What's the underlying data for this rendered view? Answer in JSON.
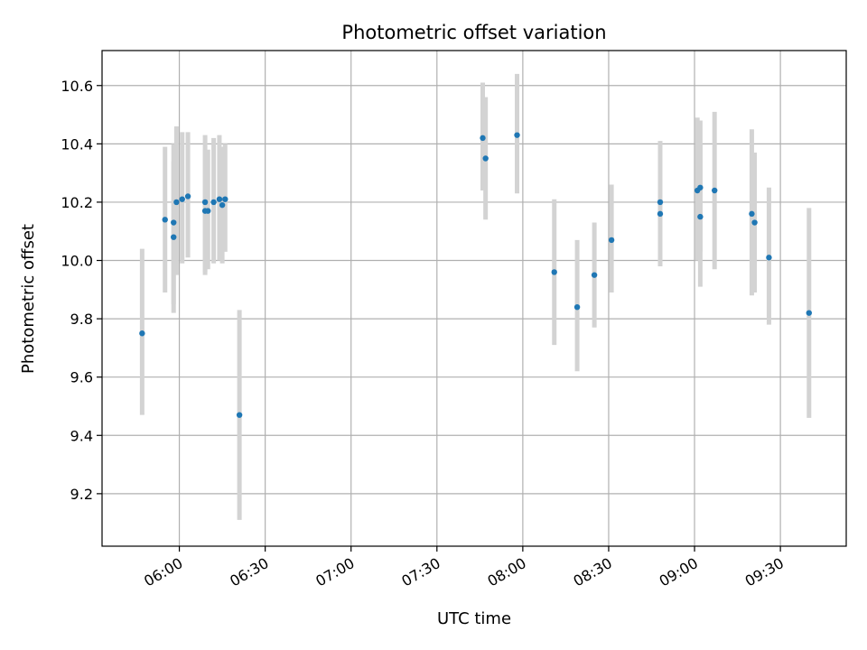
{
  "chart_data": {
    "type": "scatter",
    "title": "Photometric offset variation",
    "xlabel": "UTC time",
    "ylabel": "Photometric offset",
    "x_axis_type": "time",
    "xlim": [
      "05:33",
      "09:53"
    ],
    "ylim": [
      9.02,
      10.72
    ],
    "grid": true,
    "x_ticks": [
      "06:00",
      "06:30",
      "07:00",
      "07:30",
      "08:00",
      "08:30",
      "09:00",
      "09:30"
    ],
    "y_ticks": [
      9.2,
      9.4,
      9.6,
      9.8,
      10.0,
      10.2,
      10.4,
      10.6
    ],
    "colors": {
      "points": "#1f77b4",
      "error_bars": "#d3d3d3",
      "grid": "#b0b0b0"
    },
    "series": [
      {
        "points": [
          {
            "x": "05:47",
            "y": 9.75,
            "ylow": 9.47,
            "yhigh": 10.04
          },
          {
            "x": "05:55",
            "y": 10.14,
            "ylow": 9.89,
            "yhigh": 10.39
          },
          {
            "x": "05:58",
            "y": 10.13,
            "ylow": 9.85,
            "yhigh": 10.4
          },
          {
            "x": "05:58",
            "y": 10.08,
            "ylow": 9.82,
            "yhigh": 10.34
          },
          {
            "x": "05:59",
            "y": 10.2,
            "ylow": 9.95,
            "yhigh": 10.46
          },
          {
            "x": "06:01",
            "y": 10.21,
            "ylow": 9.99,
            "yhigh": 10.44
          },
          {
            "x": "06:03",
            "y": 10.22,
            "ylow": 10.01,
            "yhigh": 10.44
          },
          {
            "x": "06:09",
            "y": 10.2,
            "ylow": 9.95,
            "yhigh": 10.43
          },
          {
            "x": "06:09",
            "y": 10.17,
            "ylow": 9.96,
            "yhigh": 10.38
          },
          {
            "x": "06:10",
            "y": 10.17,
            "ylow": 9.97,
            "yhigh": 10.38
          },
          {
            "x": "06:12",
            "y": 10.2,
            "ylow": 9.99,
            "yhigh": 10.42
          },
          {
            "x": "06:14",
            "y": 10.21,
            "ylow": 10.0,
            "yhigh": 10.43
          },
          {
            "x": "06:15",
            "y": 10.19,
            "ylow": 9.99,
            "yhigh": 10.39
          },
          {
            "x": "06:16",
            "y": 10.21,
            "ylow": 10.03,
            "yhigh": 10.4
          },
          {
            "x": "06:21",
            "y": 9.47,
            "ylow": 9.11,
            "yhigh": 9.83
          },
          {
            "x": "07:46",
            "y": 10.42,
            "ylow": 10.24,
            "yhigh": 10.61
          },
          {
            "x": "07:47",
            "y": 10.35,
            "ylow": 10.14,
            "yhigh": 10.56
          },
          {
            "x": "07:58",
            "y": 10.43,
            "ylow": 10.23,
            "yhigh": 10.64
          },
          {
            "x": "08:11",
            "y": 9.96,
            "ylow": 9.71,
            "yhigh": 10.21
          },
          {
            "x": "08:19",
            "y": 9.84,
            "ylow": 9.62,
            "yhigh": 10.07
          },
          {
            "x": "08:25",
            "y": 9.95,
            "ylow": 9.77,
            "yhigh": 10.13
          },
          {
            "x": "08:31",
            "y": 10.07,
            "ylow": 9.89,
            "yhigh": 10.26
          },
          {
            "x": "08:48",
            "y": 10.16,
            "ylow": 9.98,
            "yhigh": 10.35
          },
          {
            "x": "08:48",
            "y": 10.2,
            "ylow": 10.0,
            "yhigh": 10.41
          },
          {
            "x": "09:01",
            "y": 10.24,
            "ylow": 10.0,
            "yhigh": 10.49
          },
          {
            "x": "09:02",
            "y": 10.25,
            "ylow": 10.03,
            "yhigh": 10.48
          },
          {
            "x": "09:02",
            "y": 10.15,
            "ylow": 9.91,
            "yhigh": 10.4
          },
          {
            "x": "09:07",
            "y": 10.24,
            "ylow": 9.97,
            "yhigh": 10.51
          },
          {
            "x": "09:20",
            "y": 10.16,
            "ylow": 9.88,
            "yhigh": 10.45
          },
          {
            "x": "09:21",
            "y": 10.13,
            "ylow": 9.89,
            "yhigh": 10.37
          },
          {
            "x": "09:26",
            "y": 10.01,
            "ylow": 9.78,
            "yhigh": 10.25
          },
          {
            "x": "09:40",
            "y": 9.82,
            "ylow": 9.46,
            "yhigh": 10.18
          }
        ]
      }
    ]
  }
}
